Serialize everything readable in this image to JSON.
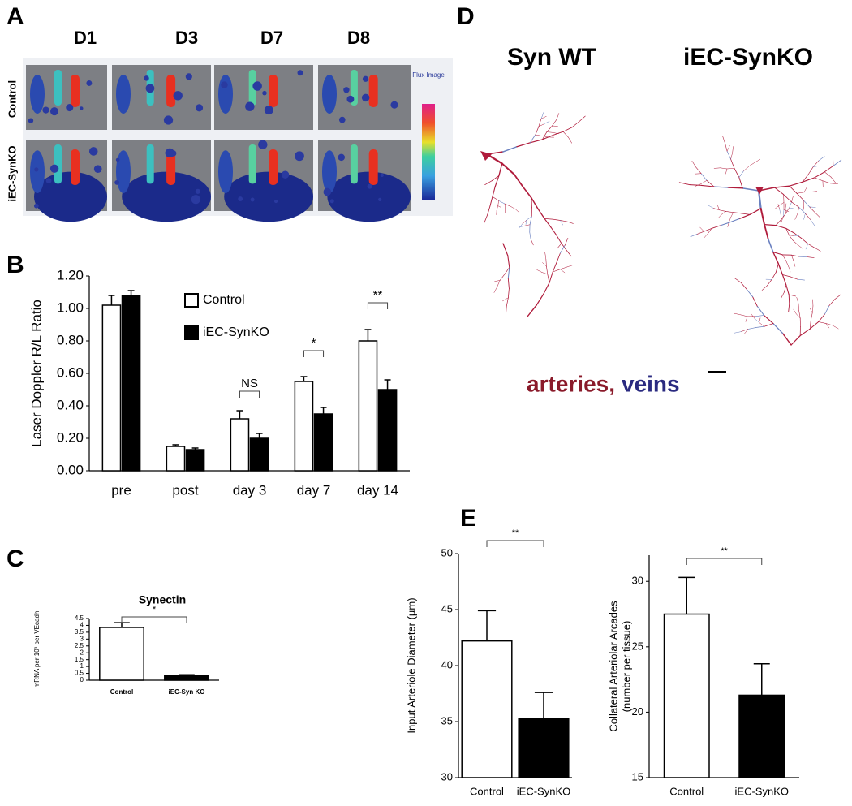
{
  "chart_data": [
    {
      "type": "bar",
      "ylabel": "Laser Doppler R/L Ratio",
      "categories": [
        "pre",
        "post",
        "day 3",
        "day 7",
        "day 14"
      ],
      "series": [
        {
          "name": "Control",
          "color": "#ffffff",
          "values": [
            1.02,
            0.15,
            0.32,
            0.55,
            0.8
          ],
          "errors": [
            0.06,
            0.01,
            0.05,
            0.03,
            0.07
          ]
        },
        {
          "name": "iEC-SynKO",
          "color": "#000000",
          "values": [
            1.08,
            0.13,
            0.2,
            0.35,
            0.5
          ],
          "errors": [
            0.03,
            0.01,
            0.03,
            0.04,
            0.06
          ]
        }
      ],
      "ylim": [
        0,
        1.2
      ],
      "yticks": [
        {
          "value": 0,
          "label": "0.00"
        },
        {
          "value": 0.2,
          "label": "0.20"
        },
        {
          "value": 0.4,
          "label": "0.40"
        },
        {
          "value": 0.6,
          "label": "0.60"
        },
        {
          "value": 0.8,
          "label": "0.80"
        },
        {
          "value": 1.0,
          "label": "1.00"
        },
        {
          "value": 1.2,
          "label": "1.20"
        }
      ],
      "annotations": [
        "NS",
        "*",
        "**"
      ]
    },
    {
      "type": "bar",
      "title": "Synectin",
      "ylabel": "mRNA per 10³ per VEcadh",
      "categories": [
        "Control",
        "iEC-Syn KO"
      ],
      "values": [
        3.85,
        0.35
      ],
      "errors": [
        0.35,
        0.05
      ],
      "colors": [
        "#ffffff",
        "#000000"
      ],
      "ylim": [
        0,
        4.5
      ],
      "yticks": [
        0,
        0.5,
        1,
        1.5,
        2,
        2.5,
        3,
        3.5,
        4,
        4.5
      ],
      "annotations": [
        "*"
      ]
    },
    {
      "type": "bar",
      "ylabel": "Input Arteriole Diameter (µm)",
      "categories": [
        "Control",
        "iEC-SynKO"
      ],
      "values": [
        42.2,
        35.3
      ],
      "errors": [
        2.7,
        2.3
      ],
      "colors": [
        "#ffffff",
        "#000000"
      ],
      "ylim": [
        30,
        50
      ],
      "yticks": [
        30,
        35,
        40,
        45,
        50
      ],
      "annotations": [
        "**"
      ]
    },
    {
      "type": "bar",
      "ylabel": [
        "Collateral Arteriolar Arcades",
        "(number per tissue)"
      ],
      "categories": [
        "Control",
        "iEC-SynKO"
      ],
      "values": [
        27.5,
        21.3
      ],
      "errors": [
        2.8,
        2.4
      ],
      "colors": [
        "#ffffff",
        "#000000"
      ],
      "ylim": [
        15,
        32
      ],
      "yticks": [
        15,
        20,
        25,
        30
      ],
      "annotations": [
        "**"
      ]
    }
  ],
  "panels": {
    "letters": [
      "A",
      "B",
      "C",
      "D",
      "E"
    ],
    "A": {
      "columns": [
        "D1",
        "D3",
        "D7",
        "D8"
      ],
      "rows": [
        "Control",
        "iEC-SynKO"
      ],
      "colorbar_title": "Flux Image"
    },
    "D": {
      "columns": [
        "Syn WT",
        "iEC-SynKO"
      ],
      "legend": [
        "arteries,",
        "veins"
      ]
    }
  }
}
